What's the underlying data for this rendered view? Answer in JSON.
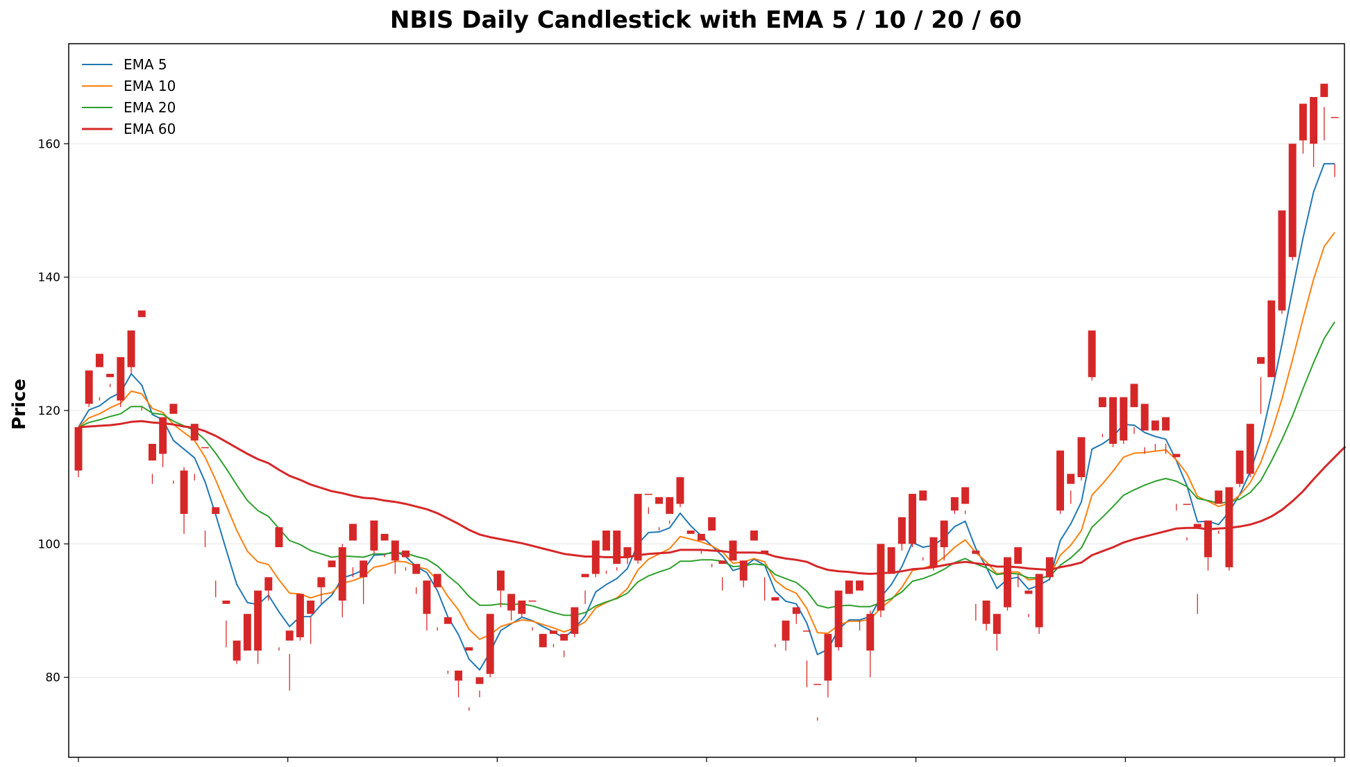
{
  "chart_data": {
    "type": "candlestick",
    "title": "NBIS Daily Candlestick with EMA 5 / 10 / 20 / 60",
    "xlabel": "",
    "ylabel": "Price",
    "ylim": [
      68,
      175
    ],
    "yticks": [
      80,
      100,
      120,
      140,
      160
    ],
    "xticks_shown_without_labels": 7,
    "grid": "horizontal",
    "legend_placement": "top-left",
    "up_color": "#d62728",
    "down_color": "#111111",
    "candles": [
      [
        111,
        117.5,
        110,
        117.5
      ],
      [
        121,
        126,
        120.5,
        125.5
      ],
      [
        126.5,
        128.5,
        121.5,
        122
      ],
      [
        125,
        125.5,
        123.5,
        124
      ],
      [
        121.5,
        128,
        120.5,
        124.5
      ],
      [
        126.5,
        132,
        125.5,
        131
      ],
      [
        134,
        135,
        120,
        120.5
      ],
      [
        112.5,
        115,
        109,
        110.5
      ],
      [
        113.5,
        119,
        111.5,
        117
      ],
      [
        119.5,
        121,
        109,
        109.5
      ],
      [
        104.5,
        111,
        101.5,
        111.5
      ],
      [
        115.5,
        118,
        109.5,
        110.5
      ],
      [
        114.5,
        114.5,
        99.5,
        102
      ],
      [
        104.5,
        105.5,
        92,
        94.5
      ],
      [
        91,
        91.5,
        84.5,
        88.5
      ],
      [
        82.5,
        85.5,
        82,
        83.5
      ],
      [
        84,
        89.5,
        84,
        86
      ],
      [
        84,
        93,
        82,
        90.5
      ],
      [
        93,
        95,
        91.5,
        95
      ],
      [
        99.5,
        102.5,
        84,
        84.5
      ],
      [
        85.5,
        87,
        78,
        83.5
      ],
      [
        86,
        92.5,
        85.5,
        92
      ],
      [
        89.5,
        91.5,
        85,
        89
      ],
      [
        93.5,
        95,
        91,
        94.5
      ],
      [
        96.5,
        97.5,
        95,
        95
      ],
      [
        91.5,
        99.5,
        89,
        100
      ],
      [
        100.5,
        103,
        95,
        96.5
      ],
      [
        95,
        97.5,
        91,
        97.5
      ],
      [
        99,
        103.5,
        98.5,
        102.5
      ],
      [
        100.5,
        101.5,
        98,
        98.5
      ],
      [
        97.5,
        100.5,
        95.5,
        100
      ],
      [
        98,
        99,
        96,
        96.5
      ],
      [
        95.5,
        97,
        92.5,
        93.5
      ],
      [
        89.5,
        94.5,
        87,
        94
      ],
      [
        93.5,
        95.5,
        87,
        87.5
      ],
      [
        88,
        89,
        80.5,
        81
      ],
      [
        79.5,
        81,
        77,
        81
      ],
      [
        84,
        84.5,
        75,
        75.5
      ],
      [
        79,
        80,
        77,
        78
      ],
      [
        80.5,
        89.5,
        80,
        89
      ],
      [
        93,
        96,
        90.5,
        93
      ],
      [
        90,
        92.5,
        88.5,
        90
      ],
      [
        89.5,
        91.5,
        89,
        91
      ],
      [
        91.5,
        91.5,
        87,
        87.5
      ],
      [
        84.5,
        86.5,
        84.5,
        86
      ],
      [
        86.5,
        87,
        84.5,
        85
      ],
      [
        85.5,
        86.5,
        83,
        84
      ],
      [
        86.5,
        90.5,
        86,
        90
      ],
      [
        95,
        95.5,
        91,
        93
      ],
      [
        95.5,
        100.5,
        95,
        100
      ],
      [
        99,
        102,
        95.5,
        96
      ],
      [
        97,
        102,
        96,
        96.5
      ],
      [
        98,
        99.5,
        97,
        99.5
      ],
      [
        97.5,
        107.5,
        97,
        107
      ],
      [
        107.5,
        107.5,
        104.5,
        105.5
      ],
      [
        106,
        107,
        102.5,
        102
      ],
      [
        104.5,
        107,
        103,
        103.5
      ],
      [
        106,
        110,
        105.5,
        109
      ],
      [
        101.5,
        102,
        99,
        99
      ],
      [
        100.5,
        101.5,
        99,
        98.5
      ],
      [
        102,
        104,
        96.5,
        97
      ],
      [
        97,
        97.5,
        93,
        95
      ],
      [
        97.5,
        100.5,
        91.5,
        91.5
      ],
      [
        94.5,
        97.5,
        93.5,
        97.5
      ],
      [
        100.5,
        102,
        100,
        100
      ],
      [
        98.5,
        99,
        91.5,
        95
      ],
      [
        91.5,
        92,
        84.5,
        85
      ],
      [
        85.5,
        88.5,
        84,
        88.5
      ],
      [
        89.5,
        90.5,
        88,
        89.5
      ],
      [
        87,
        87,
        78.5,
        82.5
      ],
      [
        79,
        79,
        73.5,
        74
      ],
      [
        79.5,
        86.5,
        77,
        86
      ],
      [
        84.5,
        93,
        84,
        93
      ],
      [
        92.5,
        94.5,
        91.5,
        91.5
      ],
      [
        93,
        94.5,
        87,
        88.5
      ],
      [
        84,
        89.5,
        80,
        90
      ],
      [
        90,
        100,
        89,
        98
      ],
      [
        95.5,
        99.5,
        95.5,
        97.5
      ],
      [
        100,
        104,
        99,
        102
      ],
      [
        100,
        107.5,
        99.5,
        107.5
      ],
      [
        106.5,
        108,
        97.5,
        98
      ],
      [
        96.5,
        101,
        96,
        100.5
      ],
      [
        99.5,
        103.5,
        97.5,
        103
      ],
      [
        105,
        107,
        104.5,
        106
      ],
      [
        106,
        108.5,
        104.5,
        105
      ],
      [
        98.5,
        99,
        88.5,
        91
      ],
      [
        88,
        91.5,
        87,
        91
      ],
      [
        86.5,
        89.5,
        84,
        87
      ],
      [
        90.5,
        98,
        90,
        97.5
      ],
      [
        97,
        99.5,
        93.5,
        95.5
      ],
      [
        92.5,
        93,
        89,
        89.5
      ],
      [
        87.5,
        95.5,
        86.5,
        95
      ],
      [
        95,
        98,
        94.5,
        96.5
      ],
      [
        105,
        114,
        104.5,
        112
      ],
      [
        109,
        110.5,
        106,
        108
      ],
      [
        110,
        116,
        109.5,
        113
      ],
      [
        125,
        132,
        124.5,
        130
      ],
      [
        120.5,
        122,
        116,
        116.5
      ],
      [
        115,
        122,
        114.5,
        118.5
      ],
      [
        115.5,
        122,
        115,
        121.5
      ],
      [
        120.5,
        124,
        116.5,
        117.5
      ],
      [
        117,
        121,
        113.5,
        114.5
      ],
      [
        117,
        118.5,
        114,
        115
      ],
      [
        117,
        119,
        113.5,
        115
      ],
      [
        113,
        113.5,
        105,
        106
      ],
      [
        106,
        106,
        100.5,
        101
      ],
      [
        102.5,
        103,
        89.5,
        92.5
      ],
      [
        98,
        103.5,
        96,
        103.5
      ],
      [
        106,
        108,
        101.5,
        102
      ],
      [
        96.5,
        108.5,
        96,
        108.5
      ],
      [
        109,
        114,
        108.5,
        112.5
      ],
      [
        110.5,
        118,
        110,
        117.5
      ],
      [
        127,
        128,
        119.5,
        125
      ],
      [
        125,
        136.5,
        125,
        136
      ],
      [
        135,
        150,
        134.5,
        145
      ],
      [
        143,
        160,
        142.5,
        154.5
      ],
      [
        160.5,
        166,
        158.5,
        161.5
      ],
      [
        160,
        167,
        156.5,
        166.5
      ],
      [
        167,
        169,
        160.5,
        165.5
      ],
      [
        164,
        164,
        155,
        157
      ]
    ],
    "series": [
      {
        "name": "EMA 5",
        "color": "#1f77b4",
        "values": [
          117.5,
          120.1,
          120.7,
          121.9,
          122.7,
          125.5,
          123.8,
          119.4,
          118.6,
          115.5,
          114.2,
          112.9,
          109.3,
          104.4,
          99.1,
          93.9,
          91.2,
          90.9,
          92.3,
          89.8,
          87.6,
          89.1,
          89.1,
          90.9,
          92.3,
          94.9,
          95.4,
          96.1,
          98.3,
          98.4,
          98.9,
          98.1,
          96.6,
          95.7,
          93.0,
          89.0,
          86.4,
          82.7,
          81.1,
          83.8,
          87.0,
          88.0,
          89.0,
          88.5,
          87.6,
          86.8,
          85.9,
          87.3,
          89.2,
          92.8,
          93.9,
          94.8,
          96.3,
          100.0,
          101.7,
          101.8,
          102.4,
          104.6,
          102.7,
          101.2,
          99.7,
          98.2,
          96.0,
          96.5,
          97.7,
          96.8,
          92.9,
          91.4,
          91.0,
          88.1,
          83.4,
          84.2,
          87.2,
          88.6,
          88.6,
          89.1,
          92.0,
          93.9,
          96.6,
          100.2,
          99.5,
          99.8,
          100.9,
          102.6,
          103.4,
          99.3,
          96.5,
          93.3,
          94.7,
          95.0,
          93.2,
          93.8,
          94.7,
          100.5,
          103.0,
          106.3,
          114.2,
          115.0,
          116.1,
          117.9,
          117.8,
          116.7,
          116.1,
          115.7,
          112.5,
          108.7,
          103.3,
          103.4,
          102.9,
          104.8,
          107.4,
          110.8,
          115.5,
          122.4,
          129.9,
          138.1,
          145.9,
          152.8,
          157.0,
          157.0
        ]
      },
      {
        "name": "EMA 10",
        "color": "#ff7f0e",
        "values": [
          117.5,
          118.9,
          119.5,
          120.4,
          121.1,
          122.9,
          122.5,
          120.3,
          119.7,
          117.9,
          116.7,
          115.5,
          113.0,
          109.6,
          105.8,
          102.0,
          98.9,
          97.3,
          96.9,
          94.6,
          92.6,
          92.5,
          91.9,
          92.4,
          92.7,
          94.1,
          94.5,
          95.1,
          96.5,
          96.8,
          97.4,
          97.3,
          96.6,
          96.2,
          94.6,
          92.1,
          90.1,
          87.2,
          85.7,
          86.4,
          87.6,
          88.1,
          88.6,
          88.4,
          87.9,
          87.4,
          86.8,
          87.4,
          88.3,
          90.4,
          91.2,
          91.9,
          93.3,
          96.1,
          97.7,
          98.5,
          99.3,
          101.1,
          100.7,
          100.3,
          99.7,
          98.8,
          97.1,
          97.3,
          97.8,
          97.3,
          94.5,
          93.3,
          92.6,
          90.3,
          86.7,
          86.6,
          87.8,
          88.4,
          88.4,
          88.7,
          90.4,
          91.6,
          93.5,
          96.0,
          96.3,
          96.9,
          98.0,
          99.5,
          100.6,
          98.7,
          97.3,
          95.5,
          95.8,
          95.8,
          94.6,
          94.8,
          95.2,
          98.3,
          99.8,
          102.0,
          107.3,
          109.0,
          110.9,
          113.0,
          113.6,
          113.7,
          113.9,
          114.1,
          112.6,
          110.5,
          107.1,
          106.4,
          105.6,
          106.1,
          107.3,
          109.2,
          112.2,
          116.6,
          121.7,
          127.6,
          133.8,
          139.7,
          144.6,
          146.7
        ]
      },
      {
        "name": "EMA 20",
        "color": "#2ca02c",
        "values": [
          117.5,
          118.2,
          118.6,
          119.1,
          119.5,
          120.6,
          120.6,
          119.6,
          119.4,
          118.4,
          117.7,
          117.0,
          115.6,
          113.6,
          111.3,
          108.8,
          106.5,
          105.0,
          104.1,
          102.3,
          100.5,
          99.9,
          99.0,
          98.5,
          98.0,
          98.2,
          98.1,
          98.0,
          98.5,
          98.5,
          98.7,
          98.6,
          98.1,
          97.7,
          96.7,
          95.2,
          93.9,
          92.1,
          90.8,
          90.8,
          91.0,
          90.9,
          91.0,
          90.7,
          90.2,
          89.7,
          89.3,
          89.3,
          89.7,
          90.7,
          91.3,
          91.8,
          92.6,
          94.3,
          95.2,
          95.8,
          96.3,
          97.4,
          97.4,
          97.6,
          97.6,
          97.4,
          96.6,
          96.7,
          97.0,
          96.8,
          95.4,
          94.8,
          94.2,
          92.9,
          90.8,
          90.4,
          90.7,
          90.8,
          90.6,
          90.6,
          91.2,
          91.8,
          92.8,
          94.4,
          94.8,
          95.4,
          96.2,
          97.2,
          97.8,
          97.0,
          96.4,
          95.4,
          95.6,
          95.5,
          94.9,
          94.9,
          95.1,
          96.8,
          97.9,
          99.4,
          102.5,
          104.0,
          105.6,
          107.3,
          108.1,
          108.8,
          109.4,
          109.8,
          109.4,
          108.6,
          106.8,
          106.5,
          106.1,
          106.3,
          106.7,
          107.7,
          109.5,
          112.4,
          115.6,
          119.2,
          123.3,
          127.2,
          130.8,
          133.3
        ]
      },
      {
        "name": "EMA 60",
        "color": "#d62728",
        "values": [
          117.5,
          117.6,
          117.7,
          117.8,
          118.0,
          118.3,
          118.4,
          118.2,
          118.1,
          117.9,
          117.6,
          117.4,
          116.9,
          116.2,
          115.3,
          114.4,
          113.5,
          112.7,
          112.1,
          111.1,
          110.2,
          109.6,
          108.9,
          108.4,
          107.9,
          107.6,
          107.2,
          106.9,
          106.8,
          106.5,
          106.3,
          106.0,
          105.6,
          105.2,
          104.6,
          103.8,
          103.0,
          102.1,
          101.4,
          101.0,
          100.7,
          100.4,
          100.1,
          99.7,
          99.3,
          98.9,
          98.5,
          98.3,
          98.1,
          98.1,
          98.0,
          98.0,
          98.0,
          98.3,
          98.5,
          98.6,
          98.7,
          99.1,
          99.1,
          99.1,
          99.0,
          98.9,
          98.7,
          98.7,
          98.7,
          98.6,
          98.1,
          97.8,
          97.6,
          97.3,
          96.6,
          96.1,
          95.9,
          95.8,
          95.6,
          95.5,
          95.6,
          95.7,
          95.9,
          96.2,
          96.3,
          96.5,
          96.8,
          97.1,
          97.3,
          97.1,
          96.9,
          96.6,
          96.6,
          96.5,
          96.3,
          96.2,
          96.1,
          96.5,
          96.8,
          97.2,
          98.3,
          98.9,
          99.5,
          100.2,
          100.7,
          101.1,
          101.5,
          101.9,
          102.3,
          102.4,
          102.4,
          102.2,
          102.3,
          102.4,
          102.6,
          102.9,
          103.4,
          104.1,
          105.1,
          106.4,
          107.9,
          109.7,
          111.4,
          113.0,
          114.6
        ]
      }
    ]
  }
}
